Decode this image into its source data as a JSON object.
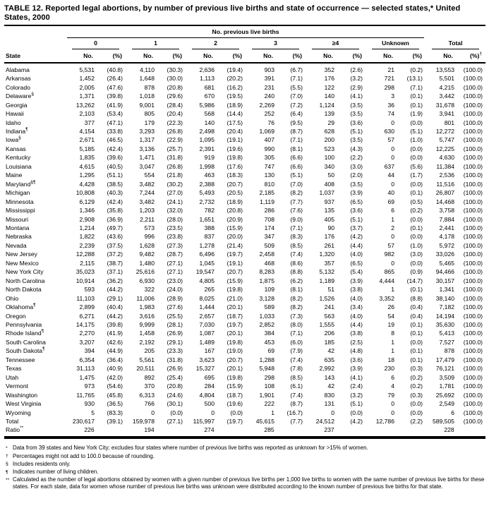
{
  "title": "TABLE 12. Reported legal abortions, by number of previous live births and state of occurrence — selected states,* United States, 2000",
  "table": {
    "spanner": "No. previous live births",
    "group_headers": [
      "0",
      "1",
      "2",
      "3",
      "≥4",
      "Unknown",
      "Total"
    ],
    "state_header": "State",
    "no_label": "No.",
    "pct_label": "(%)",
    "total_pct_marker": "†",
    "rows": [
      {
        "state": "Alabama",
        "sup": "",
        "values": [
          "5,531",
          "(40.8)",
          "4,110",
          "(30.3)",
          "2,636",
          "(19.4)",
          "903",
          "(6.7)",
          "352",
          "(2.6)",
          "21",
          "(0.2)",
          "13,553",
          "(100.0)"
        ]
      },
      {
        "state": "Arkansas",
        "sup": "",
        "values": [
          "1,452",
          "(26.4)",
          "1,648",
          "(30.0)",
          "1,113",
          "(20.2)",
          "391",
          "(7.1)",
          "176",
          "(3.2)",
          "721",
          "(13.1)",
          "5,501",
          "(100.0)"
        ]
      },
      {
        "state": "Colorado",
        "sup": "",
        "values": [
          "2,005",
          "(47.6)",
          "878",
          "(20.8)",
          "681",
          "(16.2)",
          "231",
          "(5.5)",
          "122",
          "(2.9)",
          "298",
          "(7.1)",
          "4,215",
          "(100.0)"
        ]
      },
      {
        "state": "Delaware",
        "sup": "§",
        "values": [
          "1,371",
          "(39.8)",
          "1,018",
          "(29.6)",
          "670",
          "(19.5)",
          "240",
          "(7.0)",
          "140",
          "(4.1)",
          "3",
          "(0.1)",
          "3,442",
          "(100.0)"
        ]
      },
      {
        "state": "Georgia",
        "sup": "",
        "values": [
          "13,262",
          "(41.9)",
          "9,001",
          "(28.4)",
          "5,986",
          "(18.9)",
          "2,269",
          "(7.2)",
          "1,124",
          "(3.5)",
          "36",
          "(0.1)",
          "31,678",
          "(100.0)"
        ]
      },
      {
        "state": "Hawaii",
        "sup": "",
        "values": [
          "2,103",
          "(53.4)",
          "805",
          "(20.4)",
          "568",
          "(14.4)",
          "252",
          "(6.4)",
          "139",
          "(3.5)",
          "74",
          "(1.9)",
          "3,941",
          "(100.0)"
        ]
      },
      {
        "state": "Idaho",
        "sup": "",
        "values": [
          "377",
          "(47.1)",
          "179",
          "(22.3)",
          "140",
          "(17.5)",
          "76",
          "(9.5)",
          "29",
          "(3.6)",
          "0",
          "(0.0)",
          "801",
          "(100.0)"
        ]
      },
      {
        "state": "Indiana",
        "sup": "¶",
        "values": [
          "4,154",
          "(33.8)",
          "3,293",
          "(26.8)",
          "2,498",
          "(20.4)",
          "1,069",
          "(8.7)",
          "628",
          "(5.1)",
          "630",
          "(5.1)",
          "12,272",
          "(100.0)"
        ]
      },
      {
        "state": "Iowa",
        "sup": "§",
        "values": [
          "2,671",
          "(46.5)",
          "1,317",
          "(22.9)",
          "1,095",
          "(19.1)",
          "407",
          "(7.1)",
          "200",
          "(3.5)",
          "57",
          "(1.0)",
          "5,747",
          "(100.0)"
        ]
      },
      {
        "state": "Kansas",
        "sup": "",
        "values": [
          "5,185",
          "(42.4)",
          "3,136",
          "(25.7)",
          "2,391",
          "(19.6)",
          "990",
          "(8.1)",
          "523",
          "(4.3)",
          "0",
          "(0.0)",
          "12,225",
          "(100.0)"
        ]
      },
      {
        "state": "Kentucky",
        "sup": "",
        "values": [
          "1,835",
          "(39.6)",
          "1,471",
          "(31.8)",
          "919",
          "(19.8)",
          "305",
          "(6.6)",
          "100",
          "(2.2)",
          "0",
          "(0.0)",
          "4,630",
          "(100.0)"
        ]
      },
      {
        "state": "Louisiana",
        "sup": "",
        "values": [
          "4,615",
          "(40.5)",
          "3,047",
          "(26.8)",
          "1,998",
          "(17.6)",
          "747",
          "(6.6)",
          "340",
          "(3.0)",
          "637",
          "(5.6)",
          "11,384",
          "(100.0)"
        ]
      },
      {
        "state": "Maine",
        "sup": "",
        "values": [
          "1,295",
          "(51.1)",
          "554",
          "(21.8)",
          "463",
          "(18.3)",
          "130",
          "(5.1)",
          "50",
          "(2.0)",
          "44",
          "(1.7)",
          "2,536",
          "(100.0)"
        ]
      },
      {
        "state": "Maryland",
        "sup": "§¶",
        "values": [
          "4,428",
          "(38.5)",
          "3,482",
          "(30.2)",
          "2,388",
          "(20.7)",
          "810",
          "(7.0)",
          "408",
          "(3.5)",
          "0",
          "(0.0)",
          "11,516",
          "(100.0)"
        ]
      },
      {
        "state": "Michigan",
        "sup": "",
        "values": [
          "10,808",
          "(40.3)",
          "7,244",
          "(27.0)",
          "5,493",
          "(20.5)",
          "2,185",
          "(8.2)",
          "1,037",
          "(3.9)",
          "40",
          "(0.1)",
          "26,807",
          "(100.0)"
        ]
      },
      {
        "state": "Minnesota",
        "sup": "",
        "values": [
          "6,129",
          "(42.4)",
          "3,482",
          "(24.1)",
          "2,732",
          "(18.9)",
          "1,119",
          "(7.7)",
          "937",
          "(6.5)",
          "69",
          "(0.5)",
          "14,468",
          "(100.0)"
        ]
      },
      {
        "state": "Mississippi",
        "sup": "",
        "values": [
          "1,346",
          "(35.8)",
          "1,203",
          "(32.0)",
          "782",
          "(20.8)",
          "286",
          "(7.6)",
          "135",
          "(3.6)",
          "6",
          "(0.2)",
          "3,758",
          "(100.0)"
        ]
      },
      {
        "state": "Missouri",
        "sup": "",
        "values": [
          "2,908",
          "(36.9)",
          "2,211",
          "(28.0)",
          "1,651",
          "(20.9)",
          "708",
          "(9.0)",
          "405",
          "(5.1)",
          "1",
          "(0.0)",
          "7,884",
          "(100.0)"
        ]
      },
      {
        "state": "Montana",
        "sup": "",
        "values": [
          "1,214",
          "(49.7)",
          "573",
          "(23.5)",
          "388",
          "(15.9)",
          "174",
          "(7.1)",
          "90",
          "(3.7)",
          "2",
          "(0.1)",
          "2,441",
          "(100.0)"
        ]
      },
      {
        "state": "Nebraska",
        "sup": "",
        "values": [
          "1,822",
          "(43.6)",
          "996",
          "(23.8)",
          "837",
          "(20.0)",
          "347",
          "(8.3)",
          "176",
          "(4.2)",
          "0",
          "(0.0)",
          "4,178",
          "(100.0)"
        ]
      },
      {
        "state": "Nevada",
        "sup": "",
        "values": [
          "2,239",
          "(37.5)",
          "1,628",
          "(27.3)",
          "1,278",
          "(21.4)",
          "509",
          "(8.5)",
          "261",
          "(4.4)",
          "57",
          "(1.0)",
          "5,972",
          "(100.0)"
        ]
      },
      {
        "state": "New Jersey",
        "sup": "",
        "values": [
          "12,288",
          "(37.2)",
          "9,482",
          "(28.7)",
          "6,496",
          "(19.7)",
          "2,458",
          "(7.4)",
          "1,320",
          "(4.0)",
          "982",
          "(3.0)",
          "33,026",
          "(100.0)"
        ]
      },
      {
        "state": "New Mexico",
        "sup": "",
        "values": [
          "2,115",
          "(38.7)",
          "1,480",
          "(27.1)",
          "1,045",
          "(19.1)",
          "468",
          "(8.6)",
          "357",
          "(6.5)",
          "0",
          "(0.0)",
          "5,465",
          "(100.0)"
        ]
      },
      {
        "state": "New York City",
        "sup": "",
        "values": [
          "35,023",
          "(37.1)",
          "25,616",
          "(27.1)",
          "19,547",
          "(20.7)",
          "8,283",
          "(8.8)",
          "5,132",
          "(5.4)",
          "865",
          "(0.9)",
          "94,466",
          "(100.0)"
        ]
      },
      {
        "state": "North Carolina",
        "sup": "",
        "values": [
          "10,914",
          "(36.2)",
          "6,930",
          "(23.0)",
          "4,805",
          "(15.9)",
          "1,875",
          "(6.2)",
          "1,189",
          "(3.9)",
          "4,444",
          "(14.7)",
          "30,157",
          "(100.0)"
        ]
      },
      {
        "state": "North Dakota",
        "sup": "",
        "values": [
          "593",
          "(44.2)",
          "322",
          "(24.0)",
          "265",
          "(19.8)",
          "109",
          "(8.1)",
          "51",
          "(3.8)",
          "1",
          "(0.1)",
          "1,341",
          "(100.0)"
        ]
      },
      {
        "state": "Ohio",
        "sup": "",
        "values": [
          "11,103",
          "(29.1)",
          "11,006",
          "(28.9)",
          "8,025",
          "(21.0)",
          "3,128",
          "(8.2)",
          "1,526",
          "(4.0)",
          "3,352",
          "(8.8)",
          "38,140",
          "(100.0)"
        ]
      },
      {
        "state": "Oklahoma",
        "sup": "¶",
        "values": [
          "2,899",
          "(40.4)",
          "1,983",
          "(27.6)",
          "1,444",
          "(20.1)",
          "589",
          "(8.2)",
          "241",
          "(3.4)",
          "26",
          "(0.4)",
          "7,182",
          "(100.0)"
        ]
      },
      {
        "state": "Oregon",
        "sup": "",
        "values": [
          "6,271",
          "(44.2)",
          "3,616",
          "(25.5)",
          "2,657",
          "(18.7)",
          "1,033",
          "(7.3)",
          "563",
          "(4.0)",
          "54",
          "(0.4)",
          "14,194",
          "(100.0)"
        ]
      },
      {
        "state": "Pennsylvania",
        "sup": "",
        "values": [
          "14,175",
          "(39.8)",
          "9,999",
          "(28.1)",
          "7,030",
          "(19.7)",
          "2,852",
          "(8.0)",
          "1,555",
          "(4.4)",
          "19",
          "(0.1)",
          "35,630",
          "(100.0)"
        ]
      },
      {
        "state": "Rhode Island",
        "sup": "¶",
        "values": [
          "2,270",
          "(41.9)",
          "1,458",
          "(26.9)",
          "1,087",
          "(20.1)",
          "384",
          "(7.1)",
          "206",
          "(3.8)",
          "8",
          "(0.1)",
          "5,413",
          "(100.0)"
        ]
      },
      {
        "state": "South Carolina",
        "sup": "",
        "values": [
          "3,207",
          "(42.6)",
          "2,192",
          "(29.1)",
          "1,489",
          "(19.8)",
          "453",
          "(6.0)",
          "185",
          "(2.5)",
          "1",
          "(0.0)",
          "7,527",
          "(100.0)"
        ]
      },
      {
        "state": "South Dakota",
        "sup": "¶",
        "values": [
          "394",
          "(44.9)",
          "205",
          "(23.3)",
          "167",
          "(19.0)",
          "69",
          "(7.9)",
          "42",
          "(4.8)",
          "1",
          "(0.1)",
          "878",
          "(100.0)"
        ]
      },
      {
        "state": "Tennessee",
        "sup": "",
        "values": [
          "6,354",
          "(36.4)",
          "5,561",
          "(31.8)",
          "3,623",
          "(20.7)",
          "1,288",
          "(7.4)",
          "635",
          "(3.6)",
          "18",
          "(0.1)",
          "17,479",
          "(100.0)"
        ]
      },
      {
        "state": "Texas",
        "sup": "",
        "values": [
          "31,113",
          "(40.9)",
          "20,511",
          "(26.9)",
          "15,327",
          "(20.1)",
          "5,948",
          "(7.8)",
          "2,992",
          "(3.9)",
          "230",
          "(0.3)",
          "76,121",
          "(100.0)"
        ]
      },
      {
        "state": "Utah",
        "sup": "",
        "values": [
          "1,475",
          "(42.0)",
          "892",
          "(25.4)",
          "695",
          "(19.8)",
          "298",
          "(8.5)",
          "143",
          "(4.1)",
          "6",
          "(0.2)",
          "3,509",
          "(100.0)"
        ]
      },
      {
        "state": "Vermont",
        "sup": "",
        "values": [
          "973",
          "(54.6)",
          "370",
          "(20.8)",
          "284",
          "(15.9)",
          "108",
          "(6.1)",
          "42",
          "(2.4)",
          "4",
          "(0.2)",
          "1,781",
          "(100.0)"
        ]
      },
      {
        "state": "Washington",
        "sup": "",
        "values": [
          "11,765",
          "(45.8)",
          "6,313",
          "(24.6)",
          "4,804",
          "(18.7)",
          "1,901",
          "(7.4)",
          "830",
          "(3.2)",
          "79",
          "(0.3)",
          "25,692",
          "(100.0)"
        ]
      },
      {
        "state": "West Virginia",
        "sup": "",
        "values": [
          "930",
          "(36.5)",
          "766",
          "(30.1)",
          "500",
          "(19.6)",
          "222",
          "(8.7)",
          "131",
          "(5.1)",
          "0",
          "(0.0)",
          "2,549",
          "(100.0)"
        ]
      },
      {
        "state": "Wyoming",
        "sup": "",
        "values": [
          "5",
          "(83.3)",
          "0",
          "(0.0)",
          "0",
          "(0.0)",
          "1",
          "(16.7)",
          "0",
          "(0.0)",
          "0",
          "(0.0)",
          "6",
          "(100.0)"
        ]
      }
    ],
    "total_row": {
      "state": "Total",
      "sup": "",
      "values": [
        "230,617",
        "(39.1)",
        "159,978",
        "(27.1)",
        "115,997",
        "(19.7)",
        "45,615",
        "(7.7)",
        "24,512",
        "(4.2)",
        "12,786",
        "(2.2)",
        "589,505",
        "(100.0)"
      ]
    },
    "ratio_row": {
      "state": "Ratio",
      "sup": "**",
      "values": [
        "226",
        "194",
        "274",
        "285",
        "237",
        "",
        "228"
      ]
    }
  },
  "footnotes": [
    {
      "marker": "*",
      "text": "Data from 39 states and New York City; excludes four states where number of previous live births was reported as unknown for >15% of women."
    },
    {
      "marker": "†",
      "text": "Percentages might not add to 100.0 because of rounding."
    },
    {
      "marker": "§",
      "text": "Includes residents only."
    },
    {
      "marker": "¶",
      "text": "Indicates number of living children."
    },
    {
      "marker": "**",
      "text": "Calculated as the number of legal abortions obtained by women with a given number of previous live births per 1,000 live births to women with the same number of previous live births for these states. For each state, data for women whose number of previous live births was unknown were distributed according to the known number of previous live births for that state."
    }
  ]
}
